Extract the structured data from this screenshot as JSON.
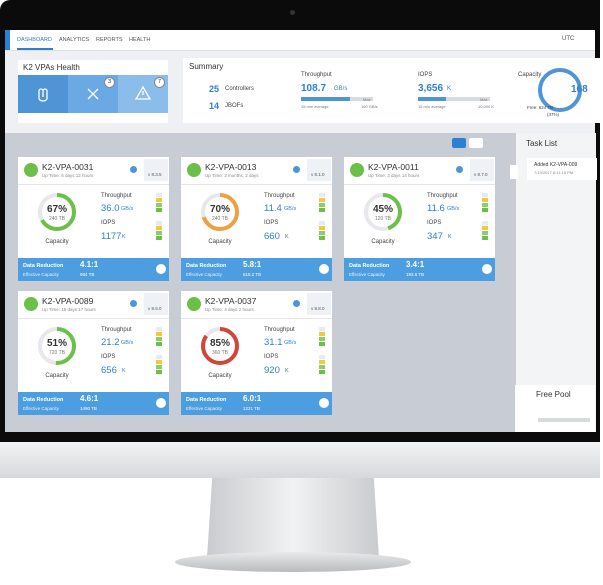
{
  "nav": {
    "items": [
      "DASHBOARD",
      "ANALYTICS",
      "REPORTS",
      "HEALTH"
    ],
    "timezone": "UTC"
  },
  "health": {
    "title": "K2 VPAs Health",
    "badges": [
      3,
      7
    ]
  },
  "summary": {
    "title": "Summary",
    "controllers": {
      "count": 25,
      "label": "Controllers"
    },
    "jbofs": {
      "count": 14,
      "label": "JBOFs"
    },
    "throughput": {
      "title": "Throughput",
      "value": "108.7",
      "unit": "GB/s",
      "note": "15 min average",
      "max_label": "Max",
      "max": "160 GB/s"
    },
    "iops": {
      "title": "IOPS",
      "value": "3,656",
      "unit": "K",
      "note": "15 min average",
      "max_label": "Max",
      "max": "10,000 K"
    },
    "capacity": {
      "title": "Capacity",
      "value": "168",
      "free": "Free: 624 TB",
      "free_pct": "(37%)"
    }
  },
  "task_list": {
    "title": "Task List",
    "tasks": [
      {
        "text": "Added K2-VPA-009",
        "time": "7/19/2017 8:11:15 PM"
      }
    ]
  },
  "free_pool": {
    "title": "Free Pool"
  },
  "cards": [
    {
      "name": "K2-VPA-0031",
      "uptime": "Up Time: 6 days 12 hours",
      "version": "v 8.3.5",
      "capacity": {
        "value": 67,
        "label": "67%"
      },
      "color": "#6cc04a",
      "size": "240 TB",
      "capacity_title": "Capacity",
      "throughput_title": "Throughput",
      "throughput": "36.0",
      "throughput_unit": "GB/s",
      "iops_title": "IOPS",
      "iops": "1177",
      "iops_unit": "K",
      "reduction_title": "Data Reduction",
      "reduction": "4.1:1",
      "effective_title": "Effective Capacity",
      "effective": "984 TB"
    },
    {
      "name": "K2-VPA-0013",
      "uptime": "Up Time: 3 months, 2 days",
      "version": "v 8.1.0",
      "capacity": {
        "value": 70,
        "label": "70%"
      },
      "color": "#f0a040",
      "size": "240 TB",
      "capacity_title": "Capacity",
      "throughput_title": "Throughput",
      "throughput": "11.4",
      "throughput_unit": "GB/s",
      "iops_title": "IOPS",
      "iops": "660",
      "iops_unit": "K",
      "reduction_title": "Data Reduction",
      "reduction": "5.8:1",
      "effective_title": "Effective Capacity",
      "effective": "515.2 TB"
    },
    {
      "name": "K2-VPA-0011",
      "uptime": "Up Time: 3 days 14 hours",
      "version": "v 8.7.0",
      "capacity": {
        "value": 45,
        "label": "45%"
      },
      "color": "#6cc04a",
      "size": "120 TB",
      "capacity_title": "Capacity",
      "throughput_title": "Throughput",
      "throughput": "11.6",
      "throughput_unit": "GB/s",
      "iops_title": "IOPS",
      "iops": "347",
      "iops_unit": "K",
      "reduction_title": "Data Reduction",
      "reduction": "3.4:1",
      "effective_title": "Effective Capacity",
      "effective": "193.6 TB"
    },
    {
      "name": "K2-VPA-0089",
      "uptime": "Up Time: 15 days 17 hours",
      "version": "v 8.5.0",
      "capacity": {
        "value": 51,
        "label": "51%"
      },
      "color": "#6cc04a",
      "size": "720 TB",
      "capacity_title": "Capacity",
      "throughput_title": "Throughput",
      "throughput": "21.2",
      "throughput_unit": "GB/s",
      "iops_title": "IOPS",
      "iops": "656",
      "iops_unit": "K",
      "reduction_title": "Data Reduction",
      "reduction": "4.6:1",
      "effective_title": "Effective Capacity",
      "effective": "1490 TB"
    },
    {
      "name": "K2-VPA-0037",
      "uptime": "Up Time: 4 days 2 hours",
      "version": "v 8.8.0",
      "capacity": {
        "value": 85,
        "label": "85%"
      },
      "color": "#d0473a",
      "size": "360 TB",
      "capacity_title": "Capacity",
      "throughput_title": "Throughput",
      "throughput": "31.1",
      "throughput_unit": "GB/s",
      "iops_title": "IOPS",
      "iops": "920",
      "iops_unit": "K",
      "reduction_title": "Data Reduction",
      "reduction": "6.0:1",
      "effective_title": "Effective Capacity",
      "effective": "1221 TB"
    }
  ]
}
